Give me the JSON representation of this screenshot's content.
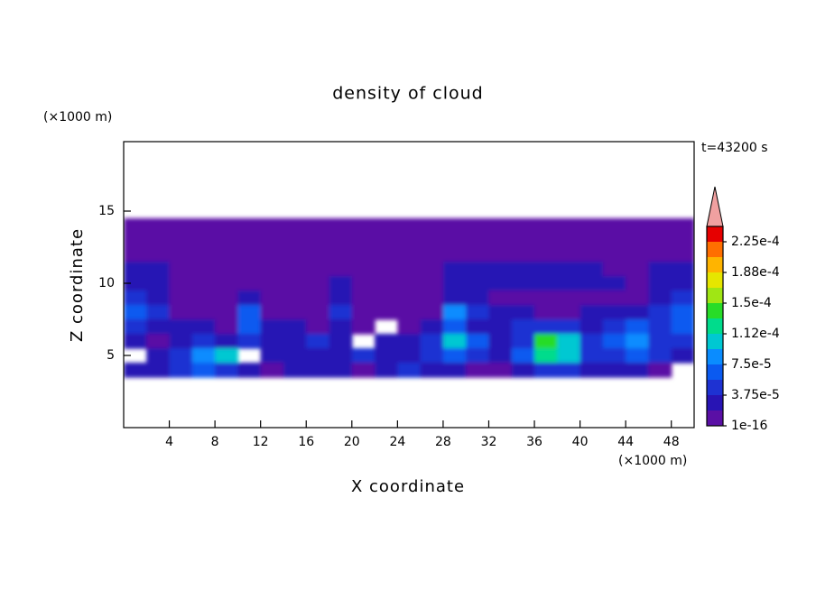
{
  "chart_data": {
    "type": "contour",
    "title": "density of cloud",
    "xlabel": "X coordinate",
    "ylabel": "Z coordinate",
    "x_unit": "(×1000 m)",
    "y_unit": "(×1000 m)",
    "time_label": "t=43200 s",
    "xlim": [
      0,
      50
    ],
    "ylim": [
      0,
      20
    ],
    "xticks": [
      4,
      8,
      12,
      16,
      20,
      24,
      28,
      32,
      36,
      40,
      44,
      48
    ],
    "yticks": [
      5,
      10,
      15
    ],
    "x": [
      1,
      3,
      5,
      7,
      9,
      11,
      13,
      15,
      17,
      19,
      21,
      23,
      25,
      27,
      29,
      31,
      33,
      35,
      37,
      39,
      41,
      43,
      45,
      47,
      49
    ],
    "z": [
      14,
      13,
      12,
      11,
      10,
      9,
      8,
      7,
      6,
      5,
      4
    ],
    "values": [
      [
        1e-16,
        1e-16,
        1e-16,
        1e-16,
        1e-16,
        1e-16,
        1e-16,
        1e-16,
        1e-16,
        1e-16,
        1e-16,
        1e-16,
        1e-16,
        1e-16,
        1e-16,
        1e-16,
        1e-16,
        1e-16,
        1e-16,
        1e-16,
        1e-16,
        1e-16,
        1e-16,
        1e-16,
        1e-16
      ],
      [
        1e-16,
        1e-16,
        1e-16,
        1e-16,
        1e-16,
        1e-16,
        1e-16,
        1e-16,
        1e-16,
        1e-16,
        1e-16,
        1e-16,
        1e-16,
        1e-16,
        1e-16,
        1e-16,
        1e-16,
        1e-16,
        1e-16,
        1e-16,
        1e-16,
        1e-16,
        1e-16,
        1e-16,
        1e-16
      ],
      [
        1e-16,
        1e-16,
        1e-16,
        1e-16,
        1e-16,
        1e-16,
        1e-16,
        1e-16,
        1e-16,
        1e-16,
        1e-16,
        1e-16,
        1e-16,
        1e-16,
        1e-16,
        1e-16,
        1e-16,
        1e-16,
        1e-16,
        1e-16,
        1e-16,
        1e-16,
        1e-16,
        1e-16,
        1e-16
      ],
      [
        2e-05,
        2e-05,
        1e-16,
        1e-16,
        1e-16,
        1e-16,
        1e-16,
        1e-16,
        1e-16,
        1e-16,
        1e-16,
        1e-16,
        1e-16,
        1e-16,
        2e-05,
        2e-05,
        2e-05,
        2e-05,
        2e-05,
        2e-05,
        2e-05,
        1e-16,
        1e-16,
        2e-05,
        2e-05
      ],
      [
        2e-05,
        2e-05,
        1e-16,
        1e-16,
        1e-16,
        1e-16,
        1e-16,
        1e-16,
        1e-16,
        2e-05,
        1e-16,
        1e-16,
        1e-16,
        1e-16,
        2e-05,
        2e-05,
        2e-05,
        2e-05,
        2e-05,
        2e-05,
        2e-05,
        2e-05,
        1e-16,
        2e-05,
        2e-05
      ],
      [
        4e-05,
        2e-05,
        1e-16,
        1e-16,
        1e-16,
        2e-05,
        1e-16,
        1e-16,
        1e-16,
        2e-05,
        1e-16,
        1e-16,
        1e-16,
        1e-16,
        2e-05,
        2e-05,
        1e-16,
        1e-16,
        1e-16,
        1e-16,
        1e-16,
        1e-16,
        1e-16,
        2e-05,
        4e-05
      ],
      [
        6e-05,
        4e-05,
        1e-16,
        1e-16,
        1e-16,
        6e-05,
        1e-16,
        1e-16,
        1e-16,
        4e-05,
        1e-16,
        1e-16,
        1e-16,
        1e-16,
        8e-05,
        4e-05,
        2e-05,
        2e-05,
        1e-16,
        1e-16,
        2e-05,
        2e-05,
        2e-05,
        4e-05,
        6e-05
      ],
      [
        4e-05,
        2e-05,
        2e-05,
        2e-05,
        1e-16,
        6e-05,
        2e-05,
        2e-05,
        1e-16,
        2e-05,
        1e-16,
        null,
        1e-16,
        2e-05,
        6e-05,
        2e-05,
        2e-05,
        4e-05,
        4e-05,
        4e-05,
        2e-05,
        4e-05,
        6e-05,
        4e-05,
        6e-05
      ],
      [
        2e-05,
        1e-16,
        2e-05,
        4e-05,
        2e-05,
        4e-05,
        2e-05,
        2e-05,
        4e-05,
        2e-05,
        null,
        2e-05,
        2e-05,
        4e-05,
        0.0001,
        6e-05,
        2e-05,
        4e-05,
        0.00014,
        0.0001,
        4e-05,
        6e-05,
        8e-05,
        4e-05,
        4e-05
      ],
      [
        null,
        2e-05,
        4e-05,
        8e-05,
        0.0001,
        null,
        2e-05,
        2e-05,
        2e-05,
        2e-05,
        4e-05,
        2e-05,
        2e-05,
        4e-05,
        6e-05,
        4e-05,
        2e-05,
        6e-05,
        0.00012,
        0.0001,
        4e-05,
        4e-05,
        6e-05,
        4e-05,
        2e-05
      ],
      [
        2e-05,
        2e-05,
        4e-05,
        6e-05,
        4e-05,
        2e-05,
        1e-16,
        2e-05,
        2e-05,
        2e-05,
        1e-16,
        2e-05,
        4e-05,
        2e-05,
        2e-05,
        1e-16,
        1e-16,
        2e-05,
        4e-05,
        4e-05,
        2e-05,
        2e-05,
        2e-05,
        1e-16,
        null
      ]
    ],
    "levels": [
      1e-16,
      1.875e-05,
      3.75e-05,
      5.625e-05,
      7.5e-05,
      9.375e-05,
      0.0001125,
      0.00013125,
      0.00015,
      0.00016875,
      0.0001875,
      0.00020625,
      0.000225,
      0.00024375
    ],
    "colors": [
      "#5a0fa5",
      "#2814b4",
      "#1e32d2",
      "#0a5af0",
      "#0a8cff",
      "#00c8d2",
      "#00dc8c",
      "#28dc28",
      "#a0e614",
      "#e6e600",
      "#ffb400",
      "#ff6e00",
      "#e60000"
    ],
    "over_color": "#f0a0a0",
    "colorbar_ticks": [
      {
        "value": 1e-16,
        "label": "1e-16"
      },
      {
        "value": 3.75e-05,
        "label": "3.75e-5"
      },
      {
        "value": 7.5e-05,
        "label": "7.5e-5"
      },
      {
        "value": 0.0001125,
        "label": "1.12e-4"
      },
      {
        "value": 0.00015,
        "label": "1.5e-4"
      },
      {
        "value": 0.0001875,
        "label": "1.88e-4"
      },
      {
        "value": 0.000225,
        "label": "2.25e-4"
      }
    ]
  }
}
